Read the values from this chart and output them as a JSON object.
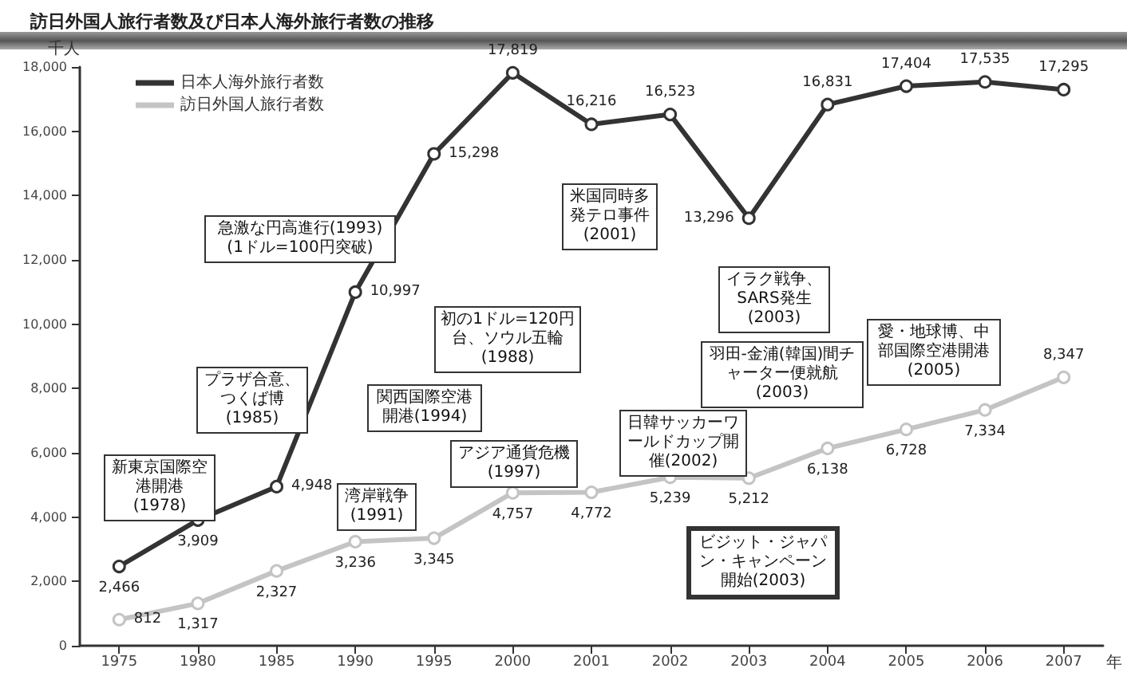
{
  "chart_data": {
    "type": "line",
    "title": "訪日外国人旅行者数及び日本人海外旅行者数の推移",
    "xlabel": "年",
    "ylabel": "千人",
    "categories": [
      "1975",
      "1980",
      "1985",
      "1990",
      "1995",
      "2000",
      "2001",
      "2002",
      "2003",
      "2004",
      "2005",
      "2006",
      "2007"
    ],
    "series": [
      {
        "name": "日本人海外旅行者数",
        "color": "#333333",
        "values": [
          2466,
          3909,
          4948,
          10997,
          15298,
          17819,
          16216,
          16523,
          13296,
          16831,
          17404,
          17535,
          17295
        ],
        "value_labels": [
          "2,466",
          "3,909",
          "4,948",
          "10,997",
          "15,298",
          "17,819",
          "16,216",
          "16,523",
          "13,296",
          "16,831",
          "17,404",
          "17,535",
          "17,295"
        ]
      },
      {
        "name": "訪日外国人旅行者数",
        "color": "#c4c4c4",
        "values": [
          812,
          1317,
          2327,
          3236,
          3345,
          4757,
          4772,
          5239,
          5212,
          6138,
          6728,
          7334,
          8347
        ],
        "value_labels": [
          "812",
          "1,317",
          "2,327",
          "3,236",
          "3,345",
          "4,757",
          "4,772",
          "5,239",
          "5,212",
          "6,138",
          "6,728",
          "7,334",
          "8,347"
        ]
      }
    ],
    "ylim": [
      0,
      18000
    ],
    "yticks": [
      0,
      {
        "value": 2000,
        "label": "2,000"
      },
      {
        "value": 4000,
        "label": "4,000"
      },
      {
        "value": 6000,
        "label": "6,000"
      },
      {
        "value": 8000,
        "label": "8,000"
      },
      {
        "value": 10000,
        "label": "10,000"
      },
      {
        "value": 12000,
        "label": "12,000"
      },
      {
        "value": 14000,
        "label": "14,000"
      },
      {
        "value": 16000,
        "label": "16,000"
      },
      {
        "value": 18000,
        "label": "18,000"
      }
    ],
    "grid": false,
    "legend": "top left",
    "marker": "circle",
    "line_style": "solid",
    "annotations": [
      "新東京国際空港開港(1978)",
      "プラザ合意、つくば博(1985)",
      "急激な円高進行(1993)(1ドル=100円突破)",
      "初の1ドル=120円台、ソウル五輪(1988)",
      "関西国際空港開港(1994)",
      "湾岸戦争(1991)",
      "アジア通貨危機(1997)",
      "米国同時多発テロ事件(2001)",
      "イラク戦争、SARS発生(2003)",
      "日韓サッカーワールドカップ開催(2002)",
      "羽田-金浦(韓国)間チャーター便就航(2003)",
      "愛・地球博、中部国際空港開港(2005)",
      "ビジット・ジャパン・キャンペーン開始(2003)"
    ]
  }
}
